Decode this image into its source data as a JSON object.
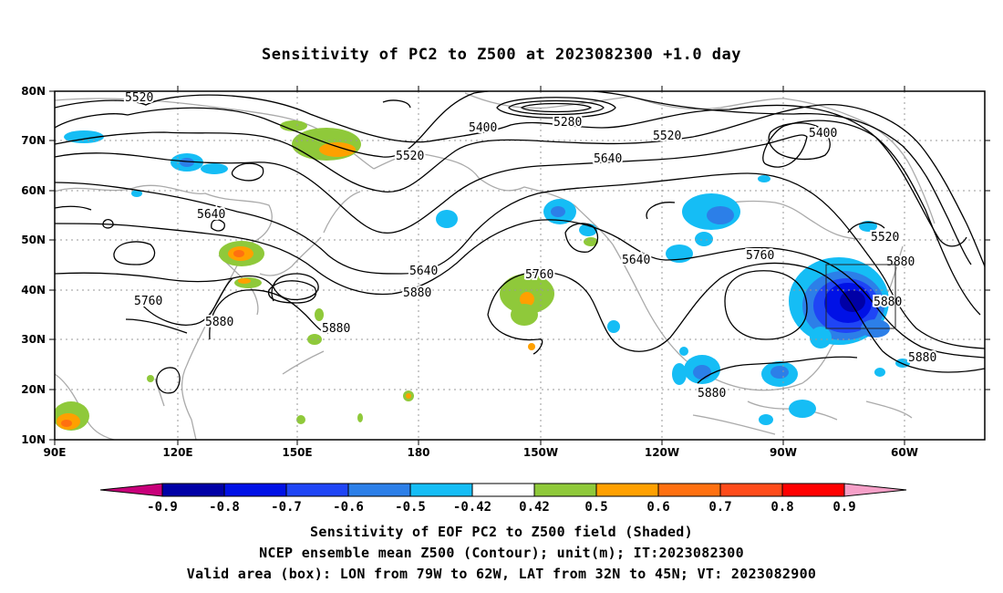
{
  "title": "Sensitivity of PC2 to Z500 at 2023082300 +1.0 day",
  "map": {
    "lon_labels": [
      "90E",
      "120E",
      "150E",
      "180",
      "150W",
      "120W",
      "90W",
      "60W"
    ],
    "lat_labels": [
      "80N",
      "70N",
      "60N",
      "50N",
      "40N",
      "30N",
      "20N",
      "10N"
    ],
    "contour_labels": [
      "5520",
      "5280",
      "5400",
      "5520",
      "5400",
      "5520",
      "5640",
      "5640",
      "5520",
      "5640",
      "5760",
      "5880",
      "5640",
      "5760",
      "5880",
      "5760",
      "5880",
      "5880",
      "5880",
      "5880"
    ],
    "valid_box_label": "Valid area box"
  },
  "colorbar": {
    "labels": [
      "-0.9",
      "-0.8",
      "-0.7",
      "-0.6",
      "-0.5",
      "-0.42",
      "0.42",
      "0.5",
      "0.6",
      "0.7",
      "0.8",
      "0.9"
    ],
    "colors": [
      "#0000a6",
      "#0011e6",
      "#1f45f5",
      "#2c7fe8",
      "#15bdf5",
      "#ffffff",
      "#8fc93a",
      "#ffa000",
      "#ff7010",
      "#ff4b1a",
      "#ff0000"
    ],
    "under_color": "#c8007a",
    "over_color": "#f6a0c8"
  },
  "captions": [
    "Sensitivity of EOF PC2 to Z500 field (Shaded)",
    "NCEP ensemble mean Z500 (Contour); unit(m); IT:2023082300",
    "Valid area (box): LON from 79W to 62W, LAT from 32N to 45N; VT: 2023082900"
  ]
}
